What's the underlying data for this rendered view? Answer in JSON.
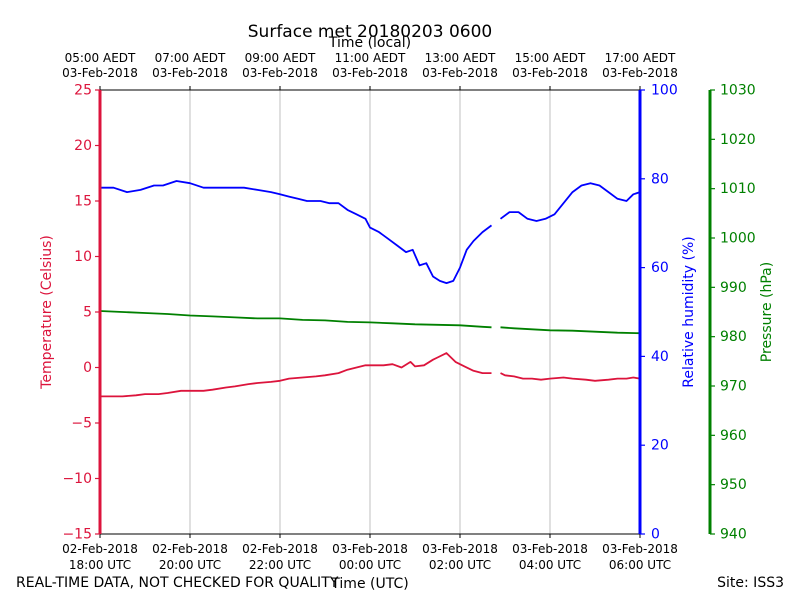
{
  "chart_data": {
    "type": "line",
    "title": "Surface met 20180203 0600",
    "top_axis_label": "Time (local)",
    "xlabel": "Time (UTC)",
    "footer_left": "REAL-TIME DATA, NOT CHECKED FOR QUALITY",
    "footer_right": "Site: ISS3",
    "x_range_utc_hours": [
      18,
      30
    ],
    "bottom_ticks": [
      {
        "hour": 18,
        "line1": "02-Feb-2018",
        "line2": "18:00 UTC"
      },
      {
        "hour": 20,
        "line1": "02-Feb-2018",
        "line2": "20:00 UTC"
      },
      {
        "hour": 22,
        "line1": "02-Feb-2018",
        "line2": "22:00 UTC"
      },
      {
        "hour": 24,
        "line1": "03-Feb-2018",
        "line2": "00:00 UTC"
      },
      {
        "hour": 26,
        "line1": "03-Feb-2018",
        "line2": "02:00 UTC"
      },
      {
        "hour": 28,
        "line1": "03-Feb-2018",
        "line2": "04:00 UTC"
      },
      {
        "hour": 30,
        "line1": "03-Feb-2018",
        "line2": "06:00 UTC"
      }
    ],
    "top_ticks": [
      {
        "hour": 18,
        "line1": "05:00 AEDT",
        "line2": "03-Feb-2018"
      },
      {
        "hour": 20,
        "line1": "07:00 AEDT",
        "line2": "03-Feb-2018"
      },
      {
        "hour": 22,
        "line1": "09:00 AEDT",
        "line2": "03-Feb-2018"
      },
      {
        "hour": 24,
        "line1": "11:00 AEDT",
        "line2": "03-Feb-2018"
      },
      {
        "hour": 26,
        "line1": "13:00 AEDT",
        "line2": "03-Feb-2018"
      },
      {
        "hour": 28,
        "line1": "15:00 AEDT",
        "line2": "03-Feb-2018"
      },
      {
        "hour": 30,
        "line1": "17:00 AEDT",
        "line2": "03-Feb-2018"
      }
    ],
    "axes": {
      "temperature": {
        "label": "Temperature (Celsius)",
        "range": [
          -15,
          25
        ],
        "ticks": [
          -15,
          -10,
          -5,
          0,
          5,
          10,
          15,
          20,
          25
        ],
        "tick_labels": [
          "−15",
          "−10",
          "−5",
          "0",
          "5",
          "10",
          "15",
          "20",
          "25"
        ],
        "color": "#dc143c"
      },
      "humidity": {
        "label": "Relative humidity (%)",
        "range": [
          0,
          100
        ],
        "ticks": [
          0,
          20,
          40,
          60,
          80,
          100
        ],
        "tick_labels": [
          "0",
          "20",
          "40",
          "60",
          "80",
          "100"
        ],
        "color": "#0000ff"
      },
      "pressure": {
        "label": "Pressure (hPa)",
        "range": [
          940,
          1030
        ],
        "ticks": [
          940,
          950,
          960,
          970,
          980,
          990,
          1000,
          1010,
          1020,
          1030
        ],
        "tick_labels": [
          "940",
          "950",
          "960",
          "970",
          "980",
          "990",
          "1000",
          "1010",
          "1020",
          "1030"
        ],
        "color": "#008000"
      }
    },
    "grid": "vertical",
    "gap_utc_hours": [
      26.7,
      26.9
    ],
    "series": [
      {
        "key": "temperature",
        "color": "#dc143c",
        "x": [
          18.0,
          18.2,
          18.5,
          18.8,
          19.0,
          19.3,
          19.5,
          19.8,
          20.0,
          20.3,
          20.5,
          20.8,
          21.0,
          21.3,
          21.5,
          21.8,
          22.0,
          22.2,
          22.5,
          22.8,
          23.0,
          23.3,
          23.5,
          23.7,
          23.9,
          24.0,
          24.3,
          24.5,
          24.7,
          24.9,
          25.0,
          25.2,
          25.4,
          25.5,
          25.7,
          25.9,
          26.0,
          26.1,
          26.3,
          26.5,
          26.7,
          26.9,
          27.0,
          27.2,
          27.4,
          27.6,
          27.8,
          28.0,
          28.3,
          28.5,
          28.8,
          29.0,
          29.3,
          29.5,
          29.7,
          29.85,
          30.0
        ],
        "y": [
          -2.6,
          -2.6,
          -2.6,
          -2.5,
          -2.4,
          -2.4,
          -2.3,
          -2.1,
          -2.1,
          -2.1,
          -2.0,
          -1.8,
          -1.7,
          -1.5,
          -1.4,
          -1.3,
          -1.2,
          -1.0,
          -0.9,
          -0.8,
          -0.7,
          -0.5,
          -0.2,
          0.0,
          0.2,
          0.2,
          0.2,
          0.3,
          0.0,
          0.5,
          0.1,
          0.2,
          0.7,
          0.9,
          1.3,
          0.5,
          0.3,
          0.1,
          -0.3,
          -0.5,
          -0.5,
          -0.5,
          -0.7,
          -0.8,
          -1.0,
          -1.0,
          -1.1,
          -1.0,
          -0.9,
          -1.0,
          -1.1,
          -1.2,
          -1.1,
          -1.0,
          -1.0,
          -0.9,
          -1.0
        ]
      },
      {
        "key": "humidity",
        "color": "#0000ff",
        "x": [
          18.0,
          18.3,
          18.6,
          18.9,
          19.2,
          19.4,
          19.7,
          20.0,
          20.3,
          20.6,
          20.9,
          21.2,
          21.5,
          21.8,
          22.0,
          22.2,
          22.4,
          22.6,
          22.9,
          23.1,
          23.3,
          23.5,
          23.7,
          23.9,
          24.0,
          24.2,
          24.4,
          24.6,
          24.8,
          24.95,
          25.1,
          25.25,
          25.4,
          25.55,
          25.7,
          25.85,
          26.0,
          26.15,
          26.3,
          26.5,
          26.7,
          26.9,
          27.1,
          27.3,
          27.5,
          27.7,
          27.9,
          28.1,
          28.3,
          28.5,
          28.7,
          28.9,
          29.1,
          29.3,
          29.5,
          29.7,
          29.85,
          30.0
        ],
        "y": [
          78,
          78,
          77,
          77.5,
          78.5,
          78.5,
          79.5,
          79,
          78,
          78,
          78,
          78,
          77.5,
          77,
          76.5,
          76,
          75.5,
          75,
          75,
          74.5,
          74.5,
          73,
          72,
          71,
          69,
          68,
          66.5,
          65,
          63.5,
          64,
          60.5,
          61,
          58,
          57,
          56.5,
          57,
          60,
          64,
          66,
          68,
          69.5,
          71,
          72.5,
          72.5,
          71,
          70.5,
          71,
          72,
          74.5,
          77,
          78.5,
          79,
          78.5,
          77,
          75.5,
          75,
          76.5,
          77
        ]
      },
      {
        "key": "pressure",
        "color": "#008000",
        "x": [
          18.0,
          18.5,
          19.0,
          19.5,
          20.0,
          20.5,
          21.0,
          21.5,
          22.0,
          22.5,
          23.0,
          23.5,
          24.0,
          24.5,
          25.0,
          25.5,
          26.0,
          26.5,
          26.7,
          26.9,
          27.2,
          27.6,
          28.0,
          28.5,
          29.0,
          29.5,
          30.0
        ],
        "y": [
          985.2,
          985.0,
          984.8,
          984.6,
          984.3,
          984.1,
          983.9,
          983.7,
          983.7,
          983.4,
          983.3,
          983.0,
          982.9,
          982.7,
          982.5,
          982.4,
          982.3,
          982.0,
          981.9,
          981.9,
          981.7,
          981.5,
          981.3,
          981.2,
          981.0,
          980.8,
          980.7
        ]
      }
    ]
  }
}
